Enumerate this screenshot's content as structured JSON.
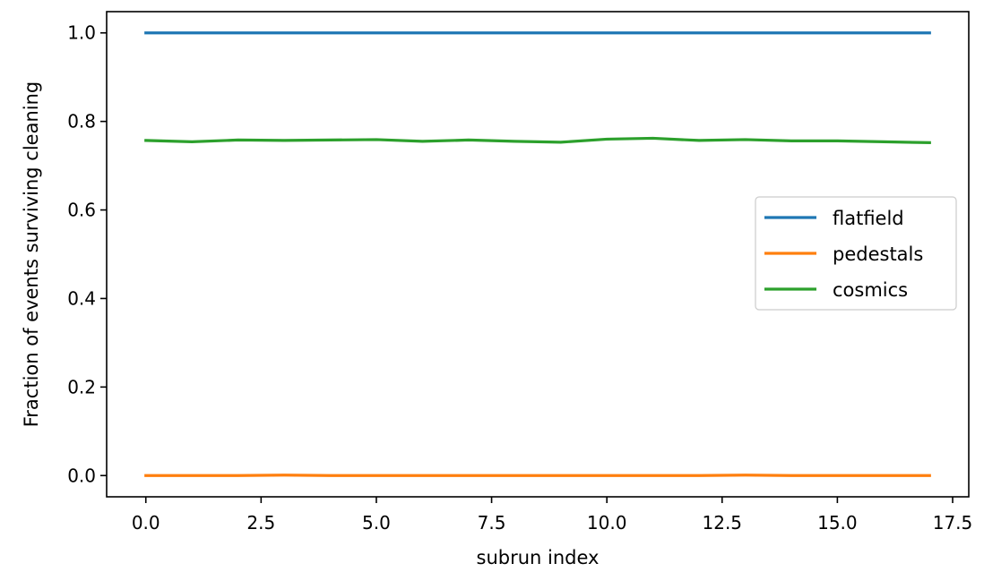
{
  "chart_data": {
    "type": "line",
    "title": "",
    "xlabel": "subrun index",
    "ylabel": "Fraction of events surviving cleaning",
    "xlim": [
      -0.85,
      17.85
    ],
    "ylim": [
      -0.048,
      1.048
    ],
    "xticks": [
      0.0,
      2.5,
      5.0,
      7.5,
      10.0,
      12.5,
      15.0,
      17.5
    ],
    "xtick_labels": [
      "0.0",
      "2.5",
      "5.0",
      "7.5",
      "10.0",
      "12.5",
      "15.0",
      "17.5"
    ],
    "yticks": [
      0.0,
      0.2,
      0.4,
      0.6,
      0.8,
      1.0
    ],
    "ytick_labels": [
      "0.0",
      "0.2",
      "0.4",
      "0.6",
      "0.8",
      "1.0"
    ],
    "grid": false,
    "legend_position": "center-right",
    "x": [
      0,
      1,
      2,
      3,
      4,
      5,
      6,
      7,
      8,
      9,
      10,
      11,
      12,
      13,
      14,
      15,
      16,
      17
    ],
    "series": [
      {
        "name": "flatfield",
        "color": "#1f77b4",
        "values": [
          1.0,
          1.0,
          1.0,
          1.0,
          1.0,
          1.0,
          1.0,
          1.0,
          1.0,
          1.0,
          1.0,
          1.0,
          1.0,
          1.0,
          1.0,
          1.0,
          1.0,
          1.0
        ]
      },
      {
        "name": "pedestals",
        "color": "#ff7f0e",
        "values": [
          0.0,
          0.0,
          0.0,
          0.001,
          0.0,
          0.0,
          0.0,
          0.0,
          0.0,
          0.0,
          0.0,
          0.0,
          0.0,
          0.001,
          0.0,
          0.0,
          0.0,
          0.0
        ]
      },
      {
        "name": "cosmics",
        "color": "#2ca02c",
        "values": [
          0.757,
          0.754,
          0.758,
          0.757,
          0.758,
          0.759,
          0.755,
          0.758,
          0.755,
          0.753,
          0.76,
          0.762,
          0.757,
          0.759,
          0.756,
          0.756,
          0.754,
          0.752
        ]
      }
    ]
  }
}
